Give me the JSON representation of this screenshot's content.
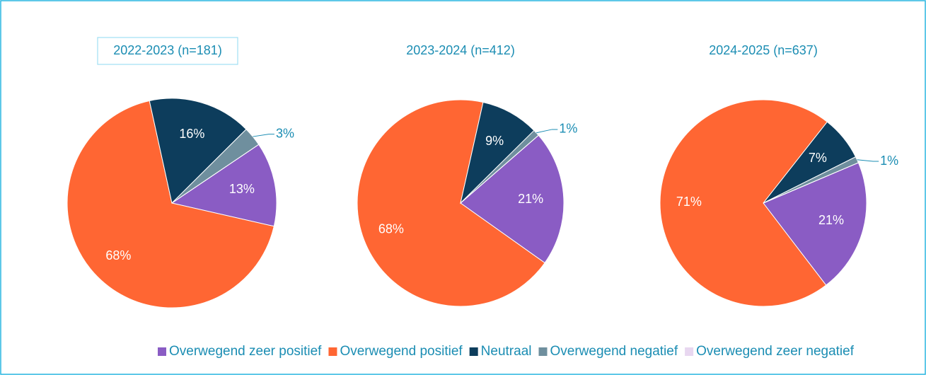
{
  "chart_data": [
    {
      "type": "pie",
      "title": "2022-2023 (n=181)",
      "categories": [
        "Overwegend zeer positief",
        "Overwegend positief",
        "Neutraal",
        "Overwegend negatief",
        "Overwegend zeer negatief"
      ],
      "values": [
        13,
        68,
        16,
        3,
        0
      ],
      "value_labels": [
        "13%",
        "68%",
        "16%",
        "3%",
        null
      ],
      "colors": [
        "#8a5cc4",
        "#ff6633",
        "#0d3d5c",
        "#6f8f9e",
        "#e8d7f0"
      ],
      "start_angle": 56,
      "legend": "bottom"
    },
    {
      "type": "pie",
      "title": "2023-2024 (n=412)",
      "categories": [
        "Overwegend zeer positief",
        "Overwegend positief",
        "Neutraal",
        "Overwegend negatief",
        "Overwegend zeer negatief"
      ],
      "values": [
        21,
        68,
        9,
        1,
        0
      ],
      "value_labels": [
        "21%",
        "68%",
        "9%",
        "1%",
        null
      ],
      "colors": [
        "#8a5cc4",
        "#ff6633",
        "#0d3d5c",
        "#6f8f9e",
        "#e8d7f0"
      ],
      "start_angle": 49,
      "legend": "bottom"
    },
    {
      "type": "pie",
      "title": "2024-2025 (n=637)",
      "categories": [
        "Overwegend zeer positief",
        "Overwegend positief",
        "Neutraal",
        "Overwegend negatief",
        "Overwegend zeer negatief"
      ],
      "values": [
        21,
        71,
        7,
        1,
        0
      ],
      "value_labels": [
        "21%",
        "71%",
        "7%",
        "1%",
        null
      ],
      "colors": [
        "#8a5cc4",
        "#ff6633",
        "#0d3d5c",
        "#6f8f9e",
        "#e8d7f0"
      ],
      "start_angle": 67,
      "legend": "bottom"
    }
  ]
}
